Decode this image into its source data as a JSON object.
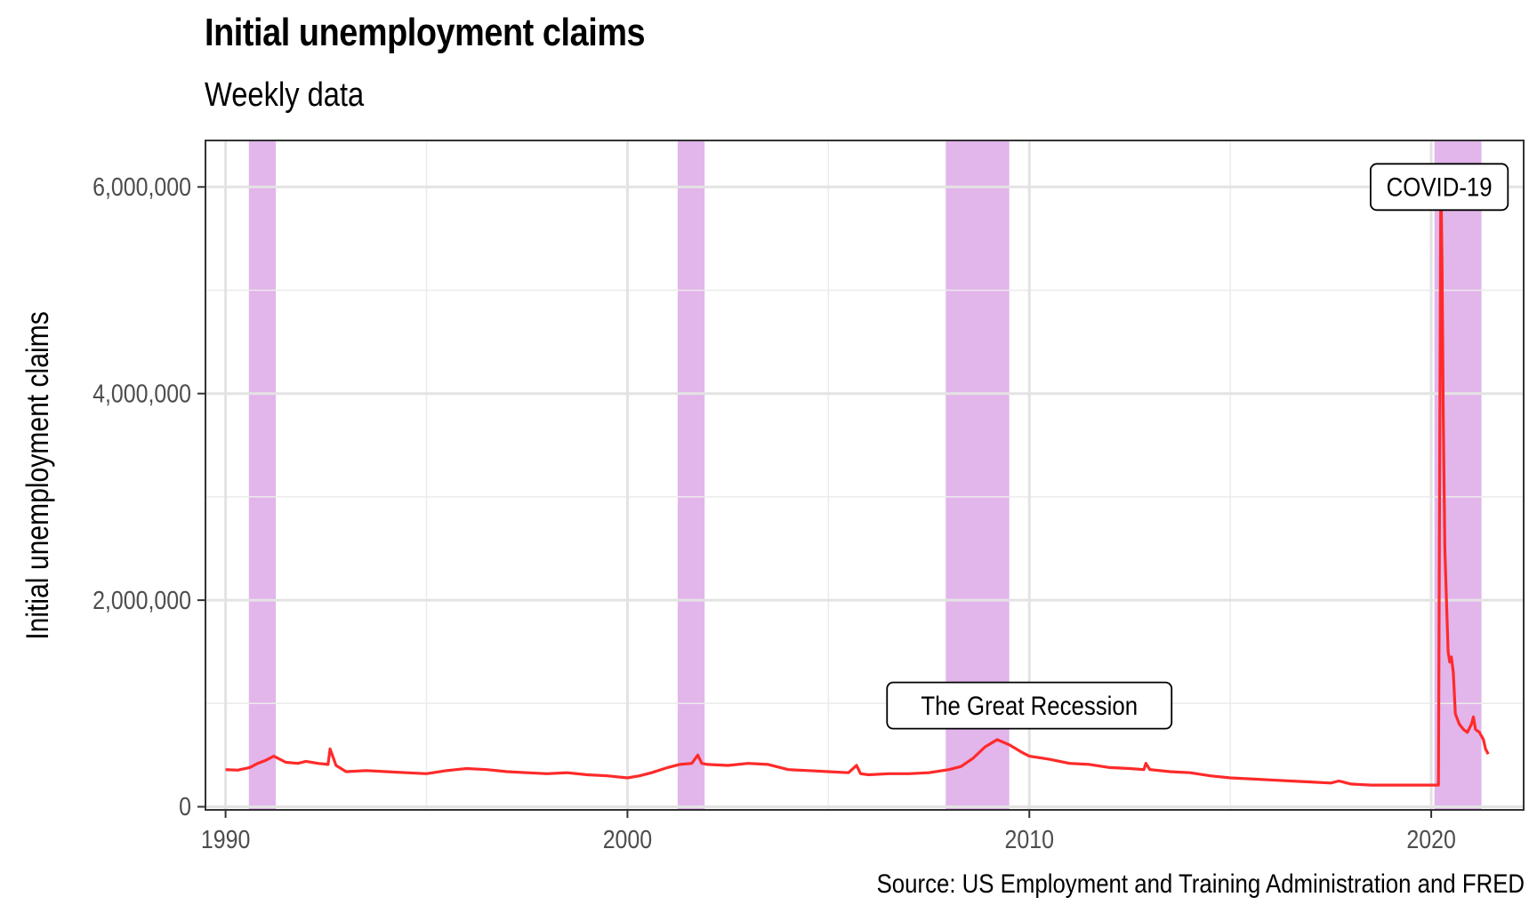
{
  "chart_data": {
    "type": "line",
    "title": "Initial unemployment claims",
    "subtitle": "Weekly data",
    "ylabel": "Initial unemployment claims",
    "xlabel": "",
    "caption": "Source: US Employment and Training Administration and FRED",
    "xlim": [
      1989.5,
      2022.3
    ],
    "ylim": [
      -30000,
      6450000
    ],
    "x_ticks": [
      1990,
      2000,
      2010,
      2020
    ],
    "y_ticks": [
      0,
      2000000,
      4000000,
      6000000
    ],
    "y_tick_labels": [
      "0",
      "2,000,000",
      "4,000,000",
      "6,000,000"
    ],
    "grid": true,
    "series": [
      {
        "color": "#ff2a2a",
        "x": [
          1990.0,
          1990.3,
          1990.6,
          1990.8,
          1991.0,
          1991.2,
          1991.5,
          1991.8,
          1992.0,
          1992.3,
          1992.55,
          1992.6,
          1992.75,
          1993.0,
          1993.5,
          1994.0,
          1994.5,
          1995.0,
          1995.5,
          1996.0,
          1996.5,
          1997.0,
          1997.5,
          1998.0,
          1998.5,
          1999.0,
          1999.5,
          2000.0,
          2000.3,
          2000.6,
          2001.0,
          2001.3,
          2001.6,
          2001.75,
          2001.85,
          2002.0,
          2002.5,
          2003.0,
          2003.5,
          2004.0,
          2004.5,
          2005.0,
          2005.5,
          2005.7,
          2005.8,
          2006.0,
          2006.5,
          2007.0,
          2007.5,
          2008.0,
          2008.3,
          2008.6,
          2008.9,
          2009.2,
          2009.5,
          2009.8,
          2010.0,
          2010.5,
          2011.0,
          2011.5,
          2012.0,
          2012.5,
          2012.85,
          2012.9,
          2013.0,
          2013.5,
          2014.0,
          2014.5,
          2015.0,
          2015.5,
          2016.0,
          2016.5,
          2017.0,
          2017.5,
          2017.7,
          2017.8,
          2018.0,
          2018.5,
          2019.0,
          2019.5,
          2020.0,
          2020.18,
          2020.21,
          2020.24,
          2020.27,
          2020.3,
          2020.34,
          2020.38,
          2020.42,
          2020.46,
          2020.5,
          2020.55,
          2020.6,
          2020.65,
          2020.7,
          2020.8,
          2020.9,
          2021.0,
          2021.05,
          2021.1,
          2021.2,
          2021.3,
          2021.35,
          2021.42
        ],
        "y": [
          360000,
          355000,
          380000,
          420000,
          450000,
          490000,
          430000,
          420000,
          440000,
          420000,
          410000,
          560000,
          400000,
          340000,
          350000,
          340000,
          330000,
          320000,
          350000,
          370000,
          360000,
          340000,
          330000,
          320000,
          330000,
          310000,
          300000,
          280000,
          300000,
          330000,
          380000,
          410000,
          420000,
          500000,
          420000,
          410000,
          400000,
          420000,
          410000,
          360000,
          350000,
          340000,
          330000,
          400000,
          320000,
          310000,
          320000,
          320000,
          330000,
          360000,
          390000,
          470000,
          580000,
          650000,
          600000,
          530000,
          490000,
          460000,
          420000,
          410000,
          380000,
          370000,
          360000,
          420000,
          360000,
          340000,
          330000,
          300000,
          280000,
          270000,
          260000,
          250000,
          240000,
          230000,
          250000,
          240000,
          220000,
          210000,
          210000,
          210000,
          210000,
          210000,
          3300000,
          6150000,
          5200000,
          3800000,
          2500000,
          2000000,
          1500000,
          1400000,
          1450000,
          1300000,
          900000,
          850000,
          800000,
          750000,
          720000,
          800000,
          870000,
          750000,
          720000,
          650000,
          560000,
          510000
        ]
      }
    ],
    "recessions": [
      [
        1990.58,
        1991.25
      ],
      [
        2001.25,
        2001.92
      ],
      [
        2007.92,
        2009.5
      ],
      [
        2020.08,
        2021.25
      ]
    ],
    "recession_color": "#d28de0",
    "annotations": [
      {
        "label": "COVID-19",
        "x": 2020.2,
        "y": 6000000
      },
      {
        "label": "The Great Recession",
        "x": 2010.0,
        "y": 980000
      }
    ]
  }
}
